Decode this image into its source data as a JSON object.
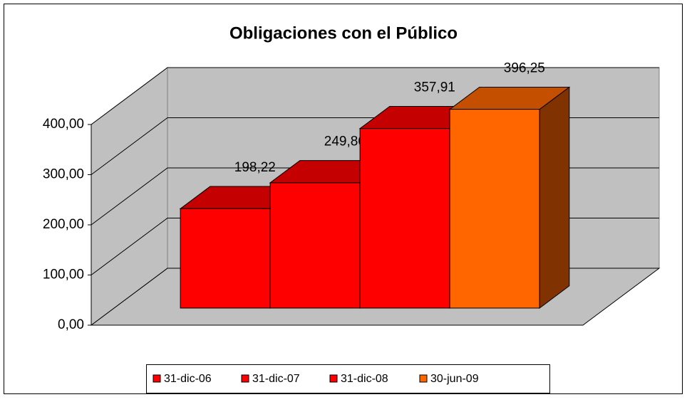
{
  "chart_data": {
    "type": "bar",
    "title": "Obligaciones con el Público",
    "series": [
      {
        "name": "31-dic-06",
        "color": "#ff0000",
        "values": [
          198.22
        ],
        "value_labels": [
          "198,22"
        ]
      },
      {
        "name": "31-dic-07",
        "color": "#ff0000",
        "values": [
          249.86
        ],
        "value_labels": [
          "249,86"
        ]
      },
      {
        "name": "31-dic-08",
        "color": "#ff0000",
        "values": [
          357.91
        ],
        "value_labels": [
          "357,91"
        ]
      },
      {
        "name": "30-jun-09",
        "color": "#ff6600",
        "values": [
          396.25
        ],
        "value_labels": [
          "396,25"
        ]
      }
    ],
    "ylim": [
      0,
      400
    ],
    "yticks": [
      {
        "value": 0,
        "label": "0,00"
      },
      {
        "value": 100,
        "label": "100,00"
      },
      {
        "value": 200,
        "label": "200,00"
      },
      {
        "value": 300,
        "label": "300,00"
      },
      {
        "value": 400,
        "label": "400,00"
      }
    ],
    "grid": true,
    "legend": "bottom"
  }
}
